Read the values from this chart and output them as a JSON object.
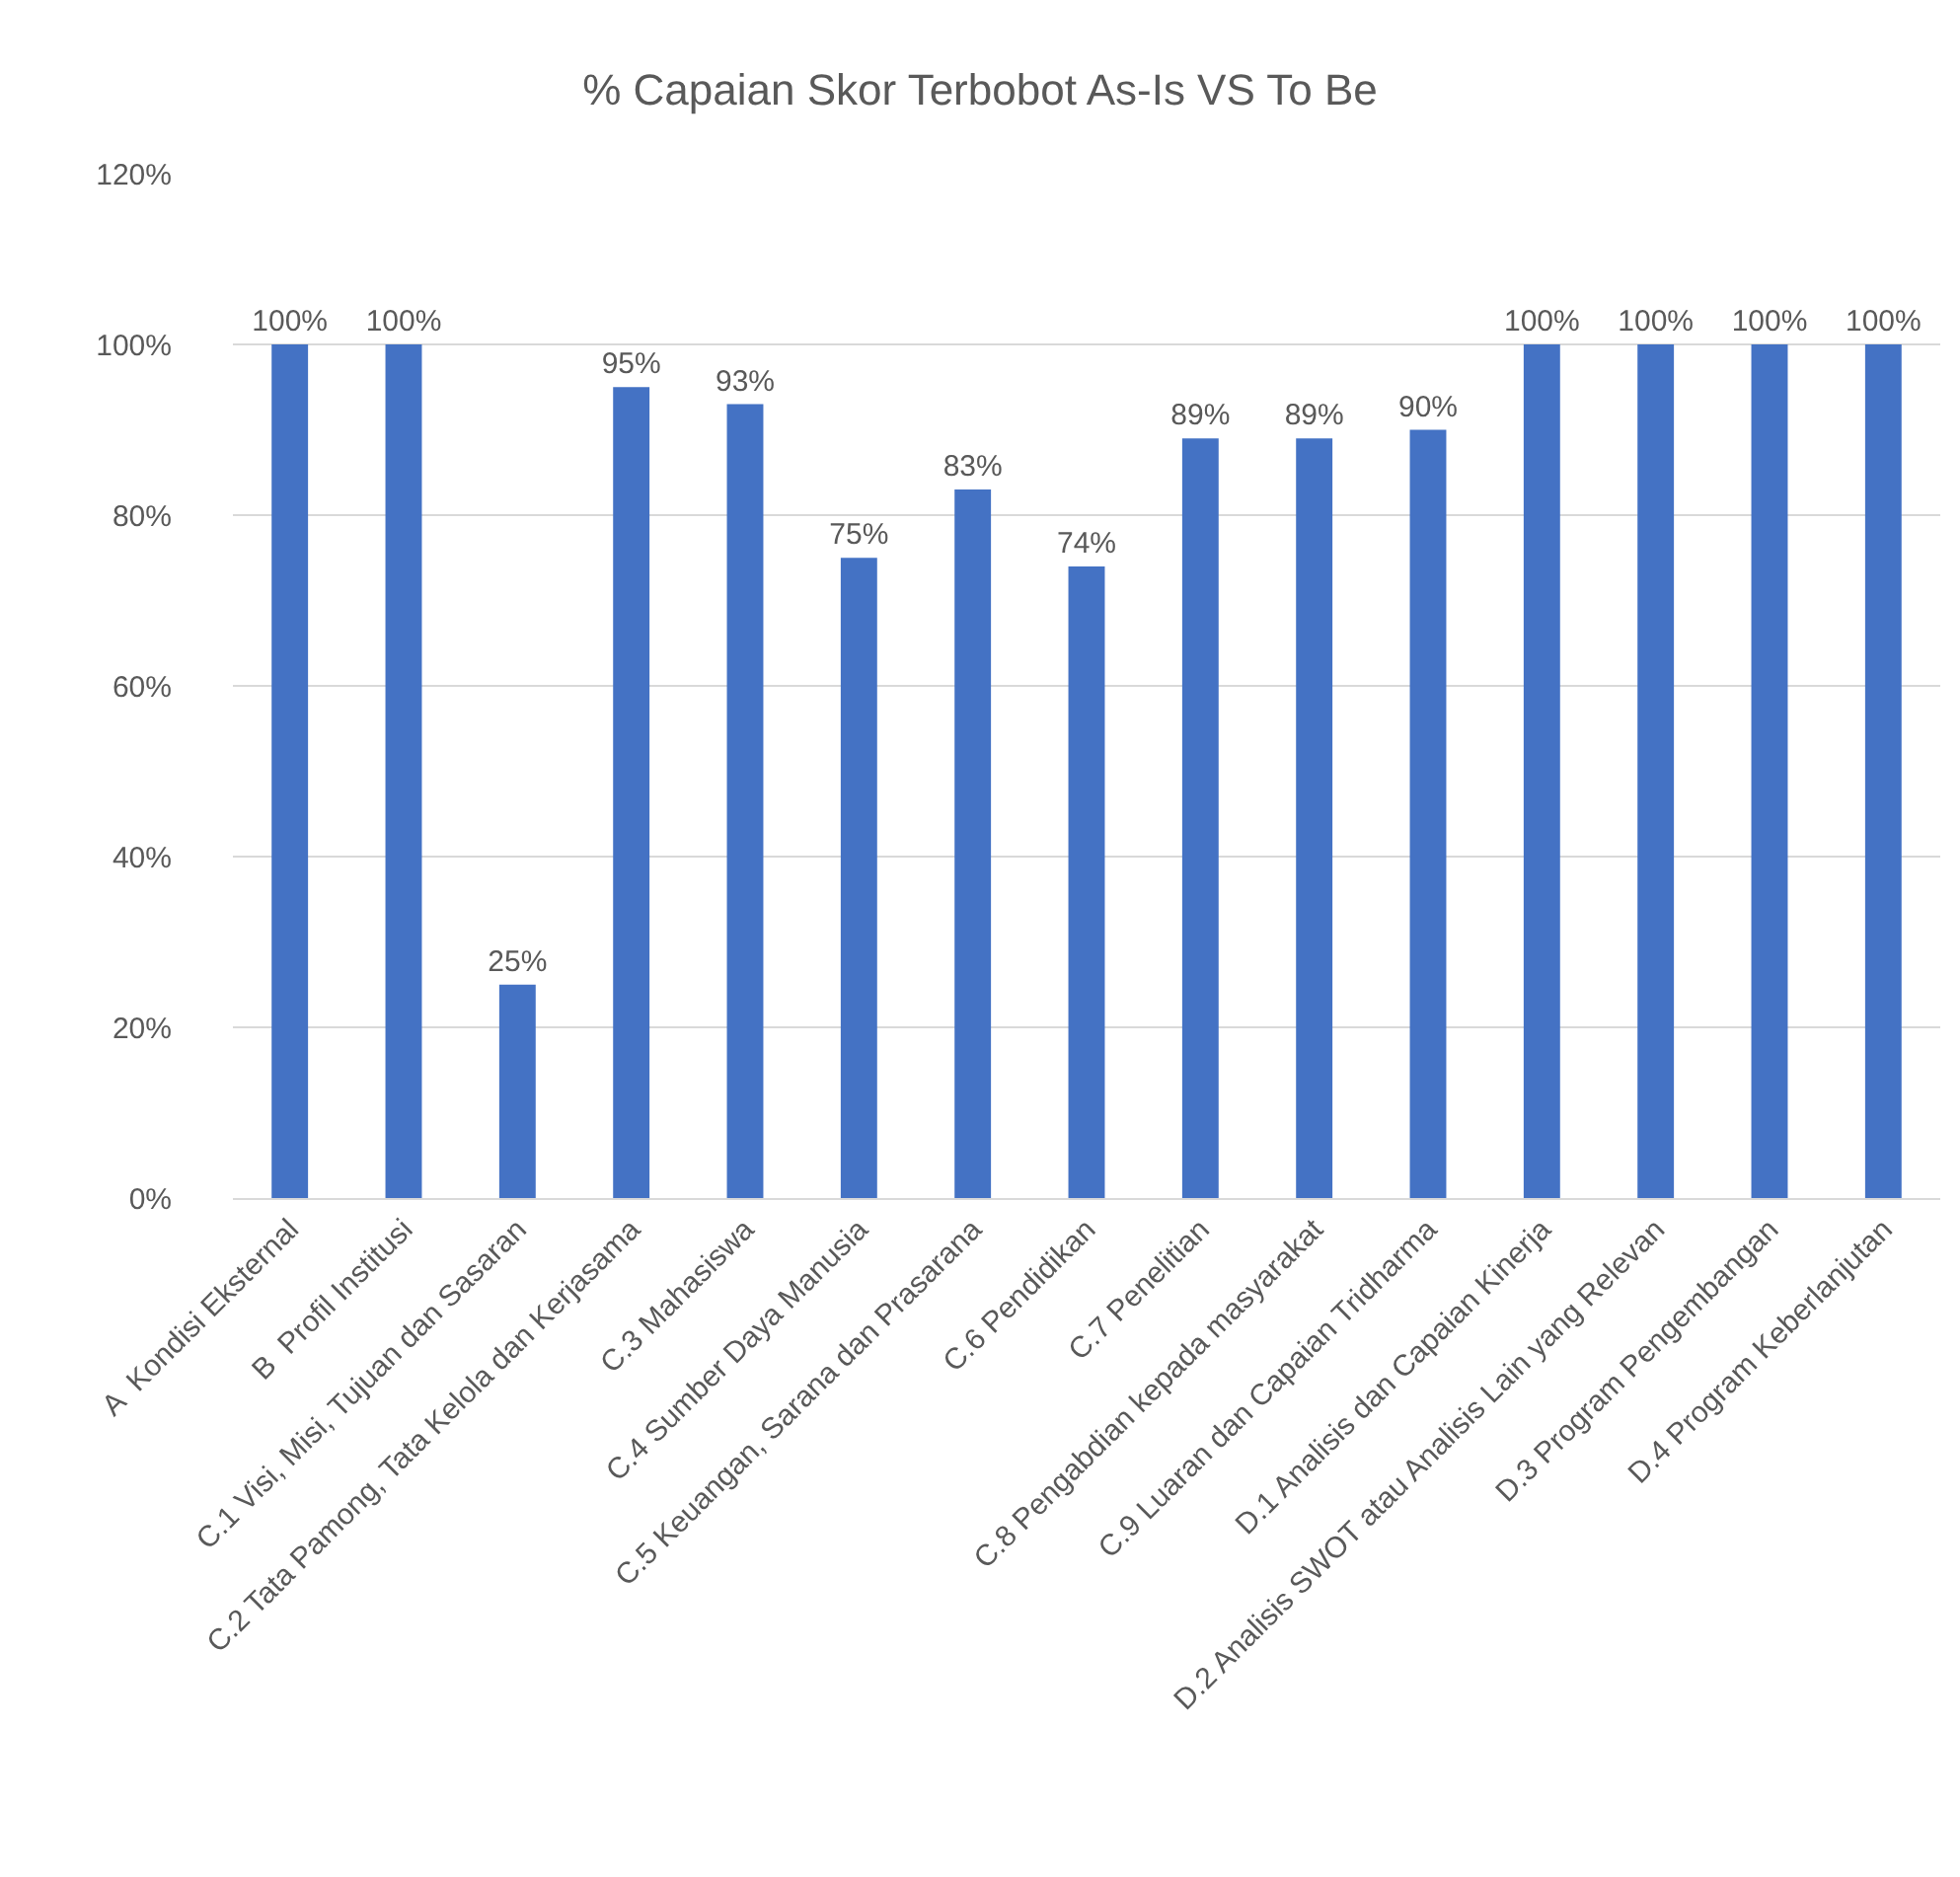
{
  "chart_data": {
    "type": "bar",
    "title": "% Capaian Skor Terbobot As-Is VS To Be",
    "categories": [
      "A  Kondisi Eksternal",
      "B  Profil Institusi",
      "C.1 Visi, Misi, Tujuan dan Sasaran",
      "C.2 Tata Pamong, Tata Kelola dan Kerjasama",
      "C.3 Mahasiswa",
      "C.4 Sumber Daya Manusia",
      "C.5 Keuangan, Sarana dan Prasarana",
      "C.6 Pendidikan",
      "C.7 Penelitian",
      "C.8 Pengabdian kepada masyarakat",
      "C.9 Luaran dan Capaian Tridharma",
      "D.1 Analisis dan Capaian Kinerja",
      "D.2 Analisis SWOT atau Analisis Lain yang Relevan",
      "D.3 Program Pengembangan",
      "D.4 Program Keberlanjutan"
    ],
    "values": [
      100,
      100,
      25,
      95,
      93,
      75,
      83,
      74,
      89,
      89,
      90,
      100,
      100,
      100,
      100
    ],
    "value_labels": [
      "100%",
      "100%",
      "25%",
      "95%",
      "93%",
      "75%",
      "83%",
      "74%",
      "89%",
      "89%",
      "90%",
      "100%",
      "100%",
      "100%",
      "100%"
    ],
    "color": "#4472c4",
    "ylim": [
      0,
      120
    ],
    "yticks": [
      {
        "value": 0,
        "label": "0%"
      },
      {
        "value": 20,
        "label": "20%"
      },
      {
        "value": 40,
        "label": "40%"
      },
      {
        "value": 60,
        "label": "60%"
      },
      {
        "value": 80,
        "label": "80%"
      },
      {
        "value": 100,
        "label": "100%"
      },
      {
        "value": 120,
        "label": "120%"
      }
    ],
    "grid": "y"
  }
}
